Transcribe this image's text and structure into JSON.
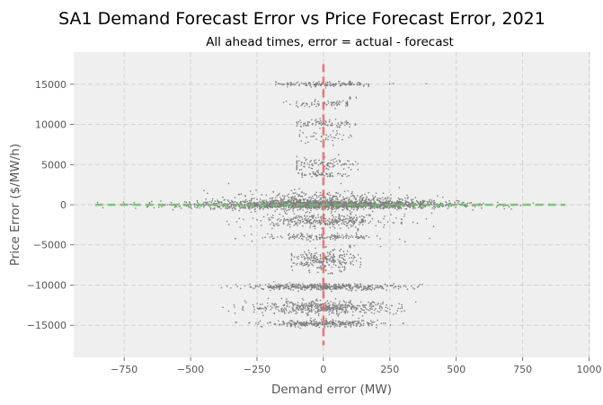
{
  "chart_data": {
    "type": "scatter",
    "title": "SA1 Demand Forecast Error vs Price Forecast Error, 2021",
    "subtitle": "All ahead times, error = actual - forecast",
    "xlabel": "Demand error (MW)",
    "ylabel": "Price Error ($/MW/h)",
    "xlim": [
      -940,
      1005
    ],
    "ylim": [
      -19000,
      19000
    ],
    "xticks": [
      -750,
      -500,
      -250,
      0,
      250,
      500,
      750,
      1000
    ],
    "xtick_labels": [
      "−750",
      "−500",
      "−250",
      "0",
      "250",
      "500",
      "750",
      "1000"
    ],
    "yticks": [
      -15000,
      -10000,
      -5000,
      0,
      5000,
      10000,
      15000
    ],
    "ytick_labels": [
      "−15000",
      "−10000",
      "−5000",
      "0",
      "5000",
      "10000",
      "15000"
    ],
    "grid": true,
    "point_color": "#7f7f7f",
    "background_color": "#efefef",
    "reference_lines": [
      {
        "orientation": "vertical",
        "value": 0,
        "color": "#e8706a",
        "style": "dashed",
        "extent": [
          -17500,
          17500
        ]
      },
      {
        "orientation": "horizontal",
        "value": 0,
        "color": "#6bbf6b",
        "style": "dashed",
        "extent": [
          -860,
          910
        ]
      }
    ],
    "clusters": [
      {
        "x_range": [
          -850,
          900
        ],
        "y_center": 0,
        "y_spread": 500,
        "count": 1800,
        "x_scale": 250
      },
      {
        "x_range": [
          -450,
          600
        ],
        "y_center": 500,
        "y_spread": 1200,
        "count": 500,
        "x_scale": 180
      },
      {
        "x_range": [
          -180,
          170
        ],
        "y_center": 15000,
        "y_spread": 300,
        "count": 150,
        "x_scale": 90
      },
      {
        "x_range": [
          100,
          520
        ],
        "y_center": 15100,
        "y_spread": 250,
        "count": 40,
        "x_scale": 150
      },
      {
        "x_range": [
          -150,
          90
        ],
        "y_center": 12600,
        "y_spread": 400,
        "count": 80,
        "x_scale": 70
      },
      {
        "x_range": [
          100,
          210
        ],
        "y_center": 13300,
        "y_spread": 150,
        "count": 20,
        "x_scale": 50
      },
      {
        "x_range": [
          -100,
          120
        ],
        "y_center": 10100,
        "y_spread": 600,
        "count": 80,
        "x_scale": 60
      },
      {
        "x_range": [
          -90,
          120
        ],
        "y_center": 8500,
        "y_spread": 700,
        "count": 40,
        "x_scale": 60
      },
      {
        "x_range": [
          -100,
          130
        ],
        "y_center": 5000,
        "y_spread": 900,
        "count": 110,
        "x_scale": 70
      },
      {
        "x_range": [
          -80,
          120
        ],
        "y_center": 3700,
        "y_spread": 300,
        "count": 60,
        "x_scale": 60
      },
      {
        "x_range": [
          -450,
          460
        ],
        "y_center": -2000,
        "y_spread": 800,
        "count": 350,
        "x_scale": 130
      },
      {
        "x_range": [
          -350,
          400
        ],
        "y_center": -4000,
        "y_spread": 400,
        "count": 150,
        "x_scale": 120
      },
      {
        "x_range": [
          -120,
          140
        ],
        "y_center": -7000,
        "y_spread": 1300,
        "count": 250,
        "x_scale": 60
      },
      {
        "x_range": [
          -520,
          500
        ],
        "y_center": -10200,
        "y_spread": 400,
        "count": 450,
        "x_scale": 150
      },
      {
        "x_range": [
          -450,
          450
        ],
        "y_center": -12800,
        "y_spread": 800,
        "count": 500,
        "x_scale": 140
      },
      {
        "x_range": [
          -450,
          300
        ],
        "y_center": -14800,
        "y_spread": 400,
        "count": 300,
        "x_scale": 110
      },
      {
        "x_range": [
          100,
          260
        ],
        "y_center": -5200,
        "y_spread": 150,
        "count": 30,
        "x_scale": 60
      },
      {
        "x_range": [
          130,
          320
        ],
        "y_center": -3100,
        "y_spread": 120,
        "count": 25,
        "x_scale": 60
      }
    ]
  }
}
